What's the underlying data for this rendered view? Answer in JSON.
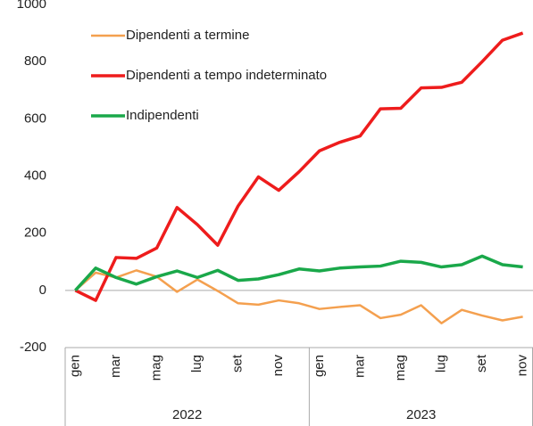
{
  "chart_data": {
    "type": "line",
    "categories": [
      "gen",
      null,
      "mar",
      null,
      "mag",
      null,
      "lug",
      null,
      "set",
      null,
      "nov",
      null,
      "gen",
      null,
      "mar",
      null,
      "mag",
      null,
      "lug",
      null,
      "set",
      null,
      "nov"
    ],
    "x_groups": [
      "2022",
      "2023"
    ],
    "series": [
      {
        "name": "Dipendenti a termine",
        "color": "#f4a04f",
        "values": [
          0,
          62,
          45,
          70,
          48,
          -5,
          38,
          -2,
          -45,
          -50,
          -35,
          -45,
          -65,
          -58,
          -52,
          -97,
          -85,
          -52,
          -115,
          -68,
          -88,
          -105,
          -92
        ]
      },
      {
        "name": "Dipendenti a tempo indeterminato",
        "color": "#ee1c1c",
        "values": [
          0,
          -35,
          115,
          112,
          148,
          290,
          230,
          158,
          295,
          397,
          350,
          415,
          488,
          518,
          540,
          635,
          637,
          708,
          710,
          728,
          800,
          875,
          900
        ]
      },
      {
        "name": "Indipendenti",
        "color": "#1aa84a",
        "values": [
          0,
          78,
          45,
          22,
          48,
          68,
          45,
          70,
          35,
          40,
          55,
          75,
          68,
          78,
          82,
          85,
          102,
          98,
          82,
          90,
          120,
          90,
          82
        ]
      }
    ],
    "ylim": [
      -200,
      1000
    ],
    "yticks": [
      -200,
      0,
      200,
      400,
      600,
      800,
      1000
    ],
    "legend": "upper left"
  }
}
